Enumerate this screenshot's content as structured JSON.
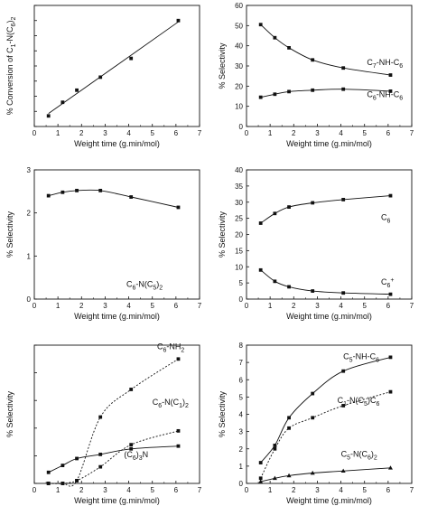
{
  "chart_data": [
    {
      "type": "line",
      "xlabel": "Weight time (g.min/mol)",
      "ylabel": "% Conversion of C₁-N(C₆)₂",
      "xlim": [
        0,
        7
      ],
      "ylim": [
        0,
        40
      ],
      "xticks": [
        0,
        1,
        2,
        3,
        4,
        5,
        6,
        7
      ],
      "yticks": [
        0,
        5,
        10,
        15,
        20,
        25,
        30,
        35,
        40
      ],
      "ytick_labels": [],
      "series": [
        {
          "name": "",
          "marker": "square",
          "line": "solid",
          "fit": "linear",
          "x": [
            0.6,
            1.2,
            1.8,
            2.8,
            4.1,
            6.1
          ],
          "y": [
            3.5,
            8,
            12,
            16.3,
            22.5,
            35
          ]
        }
      ]
    },
    {
      "type": "line",
      "xlabel": "Weight time (g.min/mol)",
      "ylabel": "% Selectivity",
      "xlim": [
        0,
        7
      ],
      "ylim": [
        0,
        60
      ],
      "xticks": [
        0,
        1,
        2,
        3,
        4,
        5,
        6,
        7
      ],
      "yticks": [
        0,
        10,
        20,
        30,
        40,
        50,
        60
      ],
      "ytick_labels": [
        "0",
        "10",
        "20",
        "30",
        "40",
        "50",
        "60"
      ],
      "series": [
        {
          "name": "C₇-NH-C₆",
          "marker": "square",
          "line": "solid",
          "x": [
            0.6,
            1.2,
            1.8,
            2.8,
            4.1,
            6.1
          ],
          "y": [
            50.5,
            44,
            39,
            33,
            29,
            25.5
          ]
        },
        {
          "name": "C₆-NH-C₆",
          "marker": "square",
          "line": "solid",
          "x": [
            0.6,
            1.2,
            1.8,
            2.8,
            4.1,
            6.1
          ],
          "y": [
            14.5,
            16,
            17.3,
            18,
            18.5,
            17.5
          ]
        }
      ]
    },
    {
      "type": "line",
      "xlabel": "Weight time (g.min/mol)",
      "ylabel": "% Selectivity",
      "xlim": [
        0,
        7
      ],
      "ylim": [
        0,
        3
      ],
      "xticks": [
        0,
        1,
        2,
        3,
        4,
        5,
        6,
        7
      ],
      "yticks": [
        0,
        1,
        2,
        3
      ],
      "ytick_labels": [
        "0",
        "1",
        "2",
        "3"
      ],
      "series": [
        {
          "name": "C₆-N(C₅)₂",
          "marker": "square",
          "line": "solid",
          "x": [
            0.6,
            1.2,
            1.8,
            2.8,
            4.1,
            6.1
          ],
          "y": [
            2.4,
            2.48,
            2.52,
            2.52,
            2.37,
            2.13
          ]
        }
      ]
    },
    {
      "type": "line",
      "xlabel": "Weight time (g.min/mol)",
      "ylabel": "% Selectivity",
      "xlim": [
        0,
        7
      ],
      "ylim": [
        0,
        40
      ],
      "xticks": [
        0,
        1,
        2,
        3,
        4,
        5,
        6,
        7
      ],
      "yticks": [
        0,
        5,
        10,
        15,
        20,
        25,
        30,
        35,
        40
      ],
      "ytick_labels": [
        "0",
        "5",
        "10",
        "15",
        "20",
        "25",
        "30",
        "35",
        "40"
      ],
      "series": [
        {
          "name": "C₆",
          "marker": "square",
          "line": "solid",
          "x": [
            0.6,
            1.2,
            1.8,
            2.8,
            4.1,
            6.1
          ],
          "y": [
            23.5,
            26.5,
            28.5,
            29.8,
            30.8,
            32
          ]
        },
        {
          "name": "C₆⁺",
          "marker": "square",
          "line": "solid",
          "x": [
            0.6,
            1.2,
            1.8,
            2.8,
            4.1,
            6.1
          ],
          "y": [
            9,
            5.5,
            3.8,
            2.5,
            1.9,
            1.5
          ]
        }
      ]
    },
    {
      "type": "line",
      "xlabel": "Weight time (g.min/mol)",
      "ylabel": "% Selectivity",
      "xlim": [
        0,
        7
      ],
      "ylim": [
        0,
        5
      ],
      "xticks": [
        0,
        1,
        2,
        3,
        4,
        5,
        6,
        7
      ],
      "yticks": [
        0,
        1,
        2,
        3,
        4,
        5
      ],
      "ytick_labels": [],
      "series": [
        {
          "name": "C₆-NH₂",
          "marker": "square",
          "line": "dotted",
          "x": [
            0.6,
            1.2,
            1.8,
            2.8,
            4.1,
            6.1
          ],
          "y": [
            0.0,
            0.0,
            0.1,
            2.4,
            3.4,
            4.5
          ]
        },
        {
          "name": "C₆-N(C₁)₂",
          "marker": "square",
          "line": "dotted",
          "x": [
            0.6,
            1.2,
            1.8,
            2.8,
            4.1,
            6.1
          ],
          "y": [
            0.0,
            0.0,
            0.1,
            0.6,
            1.4,
            1.9
          ]
        },
        {
          "name": "(C₆)₃N",
          "marker": "square",
          "line": "solid",
          "x": [
            0.6,
            1.2,
            1.8,
            2.8,
            4.1,
            6.1
          ],
          "y": [
            0.4,
            0.65,
            0.9,
            1.05,
            1.25,
            1.35
          ]
        }
      ]
    },
    {
      "type": "line",
      "xlabel": "Weight time (g.min/mol)",
      "ylabel": "% Selectivity",
      "xlim": [
        0,
        7
      ],
      "ylim": [
        0,
        8
      ],
      "xticks": [
        0,
        1,
        2,
        3,
        4,
        5,
        6,
        7
      ],
      "yticks": [
        0,
        1,
        2,
        3,
        4,
        5,
        6,
        7,
        8
      ],
      "ytick_labels": [
        "0",
        "1",
        "2",
        "3",
        "4",
        "5",
        "6",
        "7",
        "8"
      ],
      "series": [
        {
          "name": "C₅-NH-C₆",
          "marker": "square",
          "line": "solid",
          "x": [
            0.6,
            1.2,
            1.8,
            2.8,
            4.1,
            6.1
          ],
          "y": [
            1.2,
            2.2,
            3.8,
            5.2,
            6.5,
            7.3
          ]
        },
        {
          "name": "C₁-N(C₅)C₆",
          "marker": "square",
          "line": "dotted",
          "x": [
            0.6,
            1.2,
            1.8,
            2.8,
            4.1,
            6.1
          ],
          "y": [
            0.3,
            2.0,
            3.2,
            3.8,
            4.5,
            5.3
          ]
        },
        {
          "name": "C₅-N(C₆)₂",
          "marker": "triangle",
          "line": "solid",
          "x": [
            0.6,
            1.2,
            1.8,
            2.8,
            4.1,
            6.1
          ],
          "y": [
            0.1,
            0.3,
            0.45,
            0.6,
            0.72,
            0.9
          ]
        }
      ]
    }
  ]
}
